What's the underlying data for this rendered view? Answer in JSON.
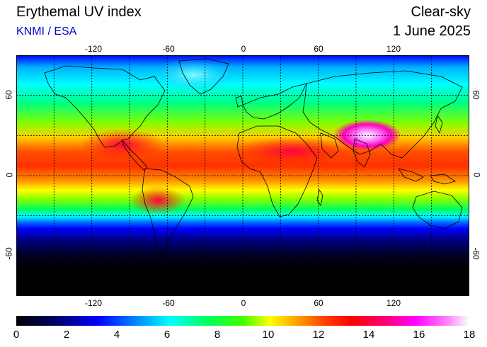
{
  "header": {
    "title": "Erythemal UV index",
    "credit": "KNMI / ESA",
    "sky": "Clear-sky",
    "date": "1 June 2025"
  },
  "map": {
    "lon_labels": [
      "-120",
      "-60",
      "0",
      "60",
      "120"
    ],
    "lat_labels": [
      "60",
      "0",
      "-60"
    ],
    "lon_values": [
      -120,
      -60,
      0,
      60,
      120
    ],
    "lat_values": [
      60,
      0,
      -60
    ]
  },
  "colorbar": {
    "labels": [
      "0",
      "2",
      "4",
      "6",
      "8",
      "10",
      "12",
      "14",
      "16",
      "18"
    ],
    "min": 0,
    "max": 18,
    "colors": [
      "#000000",
      "#000080",
      "#0000ff",
      "#00a0ff",
      "#00ffff",
      "#00ff80",
      "#00ff00",
      "#80ff00",
      "#ffff00",
      "#ffa000",
      "#ff4000",
      "#ff0000",
      "#ff0080",
      "#ff00ff",
      "#ff80ff",
      "#ffffff"
    ]
  },
  "colors": {
    "credit": "#0000cc",
    "grid": "#000000",
    "coast": "#000000"
  }
}
